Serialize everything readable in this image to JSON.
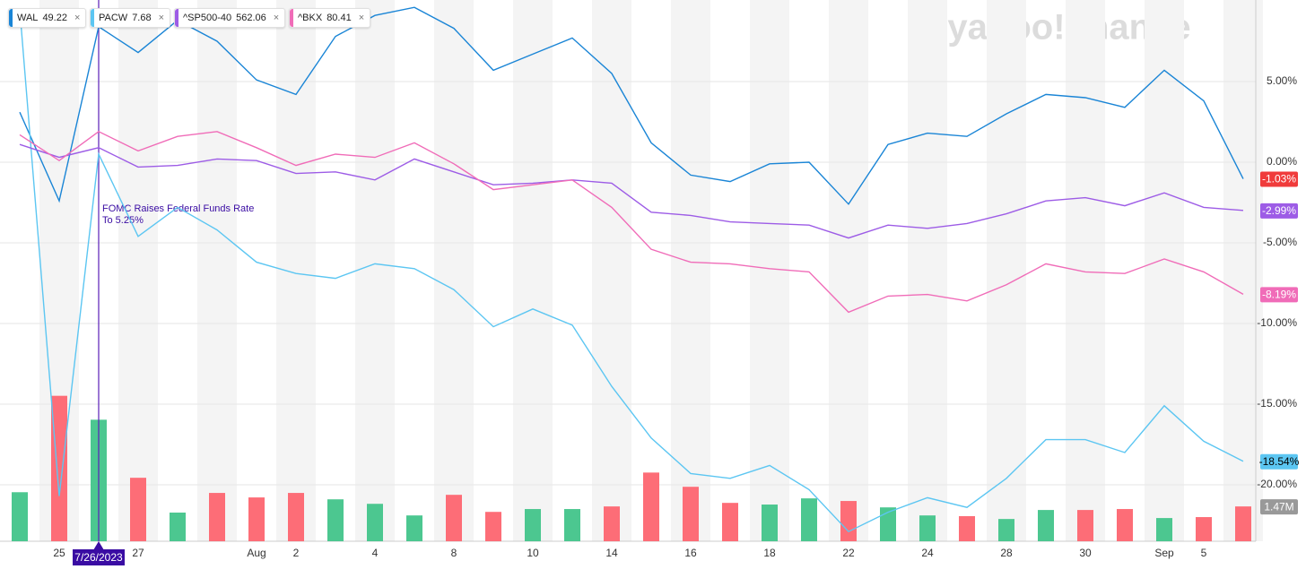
{
  "chart_data": {
    "type": "line",
    "logo": "yahoo!finance",
    "annotation": {
      "lines": [
        "FOMC Raises Federal Funds Rate",
        "To 5.25%"
      ],
      "date": "7/26/2023"
    },
    "categories": [
      null,
      "25",
      null,
      "27",
      null,
      null,
      "Aug",
      "2",
      null,
      "4",
      null,
      "8",
      null,
      "10",
      null,
      "14",
      null,
      "16",
      null,
      "18",
      null,
      "22",
      null,
      "24",
      null,
      "28",
      null,
      "30",
      null,
      "Sep",
      "5",
      null
    ],
    "ylim": [
      -23.5,
      10
    ],
    "yticks": [
      {
        "value": 5,
        "label": "5.00%"
      },
      {
        "value": 0,
        "label": "0.00%"
      },
      {
        "value": -5,
        "label": "-5.00%"
      },
      {
        "value": -10,
        "label": "-10.00%"
      },
      {
        "value": -15,
        "label": "-15.00%"
      },
      {
        "value": -20,
        "label": "-20.00%"
      }
    ],
    "grid": true,
    "series": [
      {
        "name": "WAL",
        "price": "49.22",
        "color": "#1a85d6",
        "values": [
          3.1,
          -2.4,
          8.4,
          6.8,
          8.8,
          7.5,
          5.1,
          4.2,
          7.8,
          9.1,
          9.6,
          8.3,
          5.7,
          6.7,
          7.7,
          5.5,
          1.2,
          -0.8,
          -1.2,
          -0.1,
          0,
          -2.6,
          1.1,
          1.8,
          1.6,
          3.0,
          4.2,
          4.0,
          3.4,
          5.7,
          3.8,
          -1.03
        ],
        "value_labels": [
          null,
          null,
          null,
          null,
          null,
          null,
          null,
          null,
          null,
          null,
          null,
          null,
          null,
          null,
          null,
          null,
          null,
          null,
          null,
          null,
          null,
          null,
          null,
          null,
          null,
          null,
          null,
          null,
          null,
          null,
          null,
          "-1.03%"
        ],
        "label_color": "#f03b3b"
      },
      {
        "name": "PACW",
        "price": "7.68",
        "color": "#5cc6f2",
        "values": [
          9.5,
          -20.7,
          0.5,
          -4.6,
          -2.8,
          -4.2,
          -6.2,
          -6.9,
          -7.2,
          -6.3,
          -6.6,
          -7.9,
          -10.2,
          -9.1,
          -10.1,
          -13.9,
          -17.1,
          -19.3,
          -19.6,
          -18.8,
          -20.3,
          -22.9,
          -21.7,
          -20.8,
          -21.4,
          -19.6,
          -17.2,
          -17.2,
          -18.0,
          -15.1,
          -17.3,
          -18.54
        ],
        "value_labels": [
          null,
          null,
          null,
          null,
          null,
          null,
          null,
          null,
          null,
          null,
          null,
          null,
          null,
          null,
          null,
          null,
          null,
          null,
          null,
          null,
          null,
          null,
          null,
          null,
          null,
          null,
          null,
          null,
          null,
          null,
          null,
          "-18.54%"
        ],
        "label_color": "#5cc6f2"
      },
      {
        "name": "^SP500-40",
        "price": "562.06",
        "color": "#9d5ce6",
        "values": [
          1.1,
          0.3,
          0.9,
          -0.3,
          -0.2,
          0.2,
          0.1,
          -0.7,
          -0.6,
          -1.1,
          0.2,
          -0.6,
          -1.4,
          -1.3,
          -1.1,
          -1.3,
          -3.1,
          -3.3,
          -3.7,
          -3.8,
          -3.9,
          -4.7,
          -3.9,
          -4.1,
          -3.8,
          -3.2,
          -2.4,
          -2.2,
          -2.7,
          -1.9,
          -2.8,
          -2.99
        ],
        "value_labels": [
          null,
          null,
          null,
          null,
          null,
          null,
          null,
          null,
          null,
          null,
          null,
          null,
          null,
          null,
          null,
          null,
          null,
          null,
          null,
          null,
          null,
          null,
          null,
          null,
          null,
          null,
          null,
          null,
          null,
          null,
          null,
          "-2.99%"
        ],
        "label_color": "#9d5ce6"
      },
      {
        "name": "^BKX",
        "price": "80.41",
        "color": "#f06cb8",
        "values": [
          1.7,
          0.1,
          1.9,
          0.7,
          1.6,
          1.9,
          0.9,
          -0.2,
          0.5,
          0.3,
          1.2,
          -0.1,
          -1.7,
          -1.4,
          -1.1,
          -2.8,
          -5.4,
          -6.2,
          -6.3,
          -6.6,
          -6.8,
          -9.3,
          -8.3,
          -8.2,
          -8.6,
          -7.6,
          -6.3,
          -6.8,
          -6.9,
          -6.0,
          -6.8,
          -8.19
        ],
        "value_labels": [
          null,
          null,
          null,
          null,
          null,
          null,
          null,
          null,
          null,
          null,
          null,
          null,
          null,
          null,
          null,
          null,
          null,
          null,
          null,
          null,
          null,
          null,
          null,
          null,
          null,
          null,
          null,
          null,
          null,
          null,
          null,
          "-8.19%"
        ],
        "label_color": "#f06cb8"
      }
    ],
    "volume": {
      "lim": [
        0,
        16
      ],
      "values": [
        2.07,
        6.14,
        5.13,
        2.68,
        1.21,
        2.04,
        1.85,
        2.04,
        1.77,
        1.58,
        1.09,
        1.96,
        1.24,
        1.36,
        1.36,
        1.47,
        2.9,
        2.3,
        1.62,
        1.55,
        1.81,
        1.7,
        1.43,
        1.09,
        1.06,
        0.94,
        1.32,
        1.32,
        1.36,
        0.98,
        1.02,
        1.47
      ],
      "colors": [
        "#4cc790",
        "#fd6d77",
        "#4cc790",
        "#fd6d77",
        "#4cc790",
        "#fd6d77",
        "#fd6d77",
        "#fd6d77",
        "#4cc790",
        "#4cc790",
        "#4cc790",
        "#fd6d77",
        "#fd6d77",
        "#4cc790",
        "#4cc790",
        "#fd6d77",
        "#fd6d77",
        "#fd6d77",
        "#fd6d77",
        "#4cc790",
        "#4cc790",
        "#fd6d77",
        "#4cc790",
        "#4cc790",
        "#fd6d77",
        "#4cc790",
        "#4cc790",
        "#fd6d77",
        "#fd6d77",
        "#4cc790",
        "#fd6d77",
        "#fd6d77"
      ],
      "value_labels": [
        null,
        null,
        null,
        null,
        null,
        null,
        null,
        null,
        null,
        null,
        null,
        null,
        null,
        null,
        null,
        null,
        null,
        null,
        null,
        null,
        null,
        null,
        null,
        null,
        null,
        null,
        null,
        null,
        null,
        null,
        null,
        "1.47M"
      ]
    }
  }
}
